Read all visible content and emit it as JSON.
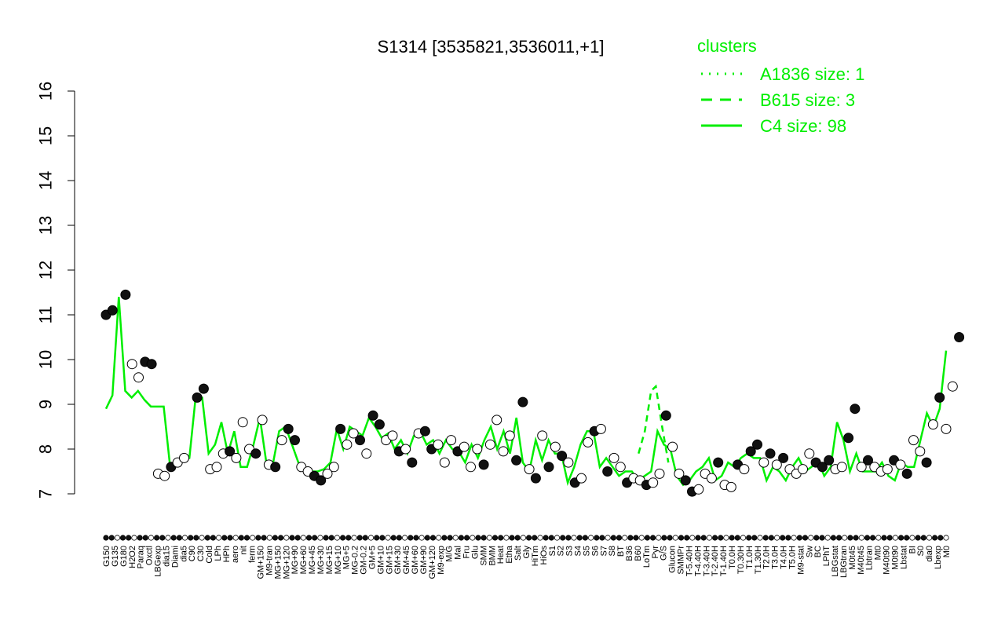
{
  "chart_data": {
    "type": "line",
    "title": "S1314 [3535821,3536011,+1]",
    "xlabel": "",
    "ylabel": "",
    "ylim": [
      7,
      16
    ],
    "y_ticks": [
      7,
      8,
      9,
      10,
      11,
      12,
      13,
      14,
      15,
      16
    ],
    "x_tick_labels": [
      "G150",
      "G135",
      "G180",
      "H2O2",
      "Paraq",
      "Oxctl",
      "LBGexp",
      "dia15",
      "Diami",
      "dia5",
      "C90",
      "C30",
      "Cold",
      "LPh",
      "HPh",
      "aero",
      "nit",
      "ferm",
      "GM+150",
      "M9-tran",
      "MG+150",
      "MG+120",
      "MG+90",
      "MG+60",
      "MG+45",
      "MG+30",
      "MG+15",
      "MG+10",
      "MG+5",
      "MG-0.2",
      "GM-0.2",
      "GM+5",
      "GM+10",
      "GM+15",
      "GM+30",
      "GM+45",
      "GM+60",
      "GM+90",
      "GM+120",
      "M9-exp",
      "M/G",
      "Mal",
      "Fru",
      "Glu",
      "SMM",
      "BMM",
      "Heat",
      "Etha",
      "Salt",
      "Gly",
      "HiTm",
      "HiOs",
      "S1",
      "S2",
      "S3",
      "S4",
      "S5",
      "S6",
      "S7",
      "S8",
      "BT",
      "B36",
      "B60",
      "LoTm",
      "Pyr",
      "G/S",
      "Glucon",
      "SMMPr",
      "T-5.40H",
      "T-4.40H",
      "T-3.40H",
      "T-2.40H",
      "T-1.40H",
      "T0.0H",
      "T0.30H",
      "T1.0H",
      "T1.30H",
      "T2.0H",
      "T3.0H",
      "T4.0H",
      "T5.0H",
      "M9-stat",
      "Sw",
      "BC",
      "LPhT",
      "LBGstat",
      "LBGtran",
      "M0t45",
      "M40t45",
      "Lbtran",
      "Mt0",
      "M40t90",
      "M0t90",
      "Lbstat",
      "BI",
      "S0",
      "dia0",
      "Lbexp",
      "M0"
    ],
    "clusters": [
      {
        "name": "A1836 size: 1",
        "style": "dotted"
      },
      {
        "name": "B615 size: 3",
        "style": "dashed"
      },
      {
        "name": "C4 size: 98",
        "style": "solid"
      }
    ],
    "legend_title": "clusters",
    "legend_position": "top-right",
    "colors": {
      "series": "#00ee00",
      "point_fill_dark": "#111111",
      "point_fill_light": "#ffffff",
      "text": "#000000"
    },
    "points": [
      {
        "x": 1,
        "y": 11.0,
        "f": 1
      },
      {
        "x": 2,
        "y": 11.1,
        "f": 1
      },
      {
        "x": 4,
        "y": 11.45,
        "f": 1
      },
      {
        "x": 5,
        "y": 9.9,
        "f": 0
      },
      {
        "x": 6,
        "y": 9.6,
        "f": 0
      },
      {
        "x": 7,
        "y": 9.95,
        "f": 1
      },
      {
        "x": 8,
        "y": 9.9,
        "f": 1
      },
      {
        "x": 9,
        "y": 7.45,
        "f": 0
      },
      {
        "x": 10,
        "y": 7.4,
        "f": 0
      },
      {
        "x": 11,
        "y": 7.6,
        "f": 1
      },
      {
        "x": 12,
        "y": 7.7,
        "f": 0
      },
      {
        "x": 13,
        "y": 7.8,
        "f": 0
      },
      {
        "x": 15,
        "y": 9.15,
        "f": 1
      },
      {
        "x": 16,
        "y": 9.35,
        "f": 1
      },
      {
        "x": 17,
        "y": 7.55,
        "f": 0
      },
      {
        "x": 18,
        "y": 7.6,
        "f": 0
      },
      {
        "x": 19,
        "y": 7.9,
        "f": 0
      },
      {
        "x": 20,
        "y": 7.95,
        "f": 1
      },
      {
        "x": 21,
        "y": 7.8,
        "f": 0
      },
      {
        "x": 22,
        "y": 8.6,
        "f": 0
      },
      {
        "x": 23,
        "y": 8.0,
        "f": 0
      },
      {
        "x": 24,
        "y": 7.9,
        "f": 1
      },
      {
        "x": 25,
        "y": 8.65,
        "f": 0
      },
      {
        "x": 26,
        "y": 7.65,
        "f": 0
      },
      {
        "x": 27,
        "y": 7.6,
        "f": 1
      },
      {
        "x": 28,
        "y": 8.2,
        "f": 0
      },
      {
        "x": 29,
        "y": 8.45,
        "f": 1
      },
      {
        "x": 30,
        "y": 8.2,
        "f": 1
      },
      {
        "x": 31,
        "y": 7.6,
        "f": 0
      },
      {
        "x": 32,
        "y": 7.5,
        "f": 0
      },
      {
        "x": 33,
        "y": 7.4,
        "f": 1
      },
      {
        "x": 34,
        "y": 7.3,
        "f": 1
      },
      {
        "x": 35,
        "y": 7.45,
        "f": 0
      },
      {
        "x": 36,
        "y": 7.6,
        "f": 0
      },
      {
        "x": 37,
        "y": 8.45,
        "f": 1
      },
      {
        "x": 38,
        "y": 8.1,
        "f": 0
      },
      {
        "x": 39,
        "y": 8.35,
        "f": 0
      },
      {
        "x": 40,
        "y": 8.2,
        "f": 1
      },
      {
        "x": 41,
        "y": 7.9,
        "f": 0
      },
      {
        "x": 42,
        "y": 8.75,
        "f": 1
      },
      {
        "x": 43,
        "y": 8.55,
        "f": 1
      },
      {
        "x": 44,
        "y": 8.2,
        "f": 0
      },
      {
        "x": 45,
        "y": 8.3,
        "f": 0
      },
      {
        "x": 46,
        "y": 7.95,
        "f": 1
      },
      {
        "x": 47,
        "y": 8.0,
        "f": 0
      },
      {
        "x": 48,
        "y": 7.7,
        "f": 1
      },
      {
        "x": 49,
        "y": 8.35,
        "f": 0
      },
      {
        "x": 50,
        "y": 8.4,
        "f": 1
      },
      {
        "x": 51,
        "y": 8.0,
        "f": 1
      },
      {
        "x": 52,
        "y": 8.1,
        "f": 0
      },
      {
        "x": 53,
        "y": 7.7,
        "f": 0
      },
      {
        "x": 54,
        "y": 8.2,
        "f": 0
      },
      {
        "x": 55,
        "y": 7.95,
        "f": 1
      },
      {
        "x": 56,
        "y": 8.05,
        "f": 0
      },
      {
        "x": 57,
        "y": 7.6,
        "f": 0
      },
      {
        "x": 58,
        "y": 8.0,
        "f": 0
      },
      {
        "x": 59,
        "y": 7.65,
        "f": 1
      },
      {
        "x": 60,
        "y": 8.1,
        "f": 0
      },
      {
        "x": 61,
        "y": 8.65,
        "f": 0
      },
      {
        "x": 62,
        "y": 7.95,
        "f": 0
      },
      {
        "x": 63,
        "y": 8.3,
        "f": 0
      },
      {
        "x": 64,
        "y": 7.75,
        "f": 1
      },
      {
        "x": 65,
        "y": 9.05,
        "f": 1
      },
      {
        "x": 66,
        "y": 7.55,
        "f": 0
      },
      {
        "x": 67,
        "y": 7.35,
        "f": 1
      },
      {
        "x": 68,
        "y": 8.3,
        "f": 0
      },
      {
        "x": 69,
        "y": 7.6,
        "f": 1
      },
      {
        "x": 70,
        "y": 8.05,
        "f": 0
      },
      {
        "x": 71,
        "y": 7.85,
        "f": 1
      },
      {
        "x": 72,
        "y": 7.7,
        "f": 0
      },
      {
        "x": 73,
        "y": 7.25,
        "f": 1
      },
      {
        "x": 74,
        "y": 7.35,
        "f": 0
      },
      {
        "x": 75,
        "y": 8.15,
        "f": 0
      },
      {
        "x": 76,
        "y": 8.4,
        "f": 1
      },
      {
        "x": 77,
        "y": 8.45,
        "f": 0
      },
      {
        "x": 78,
        "y": 7.5,
        "f": 1
      },
      {
        "x": 79,
        "y": 7.8,
        "f": 0
      },
      {
        "x": 80,
        "y": 7.6,
        "f": 0
      },
      {
        "x": 81,
        "y": 7.25,
        "f": 1
      },
      {
        "x": 82,
        "y": 7.35,
        "f": 0
      },
      {
        "x": 83,
        "y": 7.3,
        "f": 0
      },
      {
        "x": 84,
        "y": 7.2,
        "f": 1
      },
      {
        "x": 85,
        "y": 7.25,
        "f": 0
      },
      {
        "x": 86,
        "y": 7.45,
        "f": 0
      },
      {
        "x": 87,
        "y": 8.75,
        "f": 1
      },
      {
        "x": 88,
        "y": 8.05,
        "f": 0
      },
      {
        "x": 89,
        "y": 7.45,
        "f": 0
      },
      {
        "x": 90,
        "y": 7.3,
        "f": 1
      },
      {
        "x": 91,
        "y": 7.05,
        "f": 1
      },
      {
        "x": 92,
        "y": 7.1,
        "f": 0
      },
      {
        "x": 93,
        "y": 7.45,
        "f": 0
      },
      {
        "x": 94,
        "y": 7.35,
        "f": 0
      },
      {
        "x": 95,
        "y": 7.7,
        "f": 1
      },
      {
        "x": 96,
        "y": 7.2,
        "f": 0
      },
      {
        "x": 97,
        "y": 7.15,
        "f": 0
      },
      {
        "x": 98,
        "y": 7.65,
        "f": 1
      },
      {
        "x": 99,
        "y": 7.55,
        "f": 0
      },
      {
        "x": 100,
        "y": 7.95,
        "f": 1
      },
      {
        "x": 101,
        "y": 8.1,
        "f": 1
      },
      {
        "x": 102,
        "y": 7.7,
        "f": 0
      },
      {
        "x": 103,
        "y": 7.9,
        "f": 1
      },
      {
        "x": 104,
        "y": 7.65,
        "f": 0
      },
      {
        "x": 105,
        "y": 7.8,
        "f": 1
      },
      {
        "x": 106,
        "y": 7.55,
        "f": 0
      },
      {
        "x": 107,
        "y": 7.45,
        "f": 0
      },
      {
        "x": 108,
        "y": 7.55,
        "f": 0
      },
      {
        "x": 109,
        "y": 7.9,
        "f": 0
      },
      {
        "x": 110,
        "y": 7.7,
        "f": 1
      },
      {
        "x": 111,
        "y": 7.6,
        "f": 1
      },
      {
        "x": 112,
        "y": 7.75,
        "f": 1
      },
      {
        "x": 113,
        "y": 7.55,
        "f": 0
      },
      {
        "x": 114,
        "y": 7.6,
        "f": 0
      },
      {
        "x": 115,
        "y": 8.25,
        "f": 1
      },
      {
        "x": 116,
        "y": 8.9,
        "f": 1
      },
      {
        "x": 117,
        "y": 7.6,
        "f": 0
      },
      {
        "x": 118,
        "y": 7.75,
        "f": 1
      },
      {
        "x": 119,
        "y": 7.6,
        "f": 0
      },
      {
        "x": 120,
        "y": 7.5,
        "f": 0
      },
      {
        "x": 121,
        "y": 7.55,
        "f": 0
      },
      {
        "x": 122,
        "y": 7.75,
        "f": 1
      },
      {
        "x": 123,
        "y": 7.65,
        "f": 0
      },
      {
        "x": 124,
        "y": 7.45,
        "f": 1
      },
      {
        "x": 125,
        "y": 8.2,
        "f": 0
      },
      {
        "x": 126,
        "y": 7.95,
        "f": 0
      },
      {
        "x": 127,
        "y": 7.7,
        "f": 1
      },
      {
        "x": 128,
        "y": 8.55,
        "f": 0
      },
      {
        "x": 129,
        "y": 9.15,
        "f": 1
      },
      {
        "x": 130,
        "y": 8.45,
        "f": 0
      },
      {
        "x": 131,
        "y": 9.4,
        "f": 0
      },
      {
        "x": 132,
        "y": 10.5,
        "f": 1
      }
    ],
    "line_c4": [
      8.9,
      9.2,
      11.4,
      9.3,
      9.15,
      9.3,
      9.1,
      8.95,
      8.95,
      8.95,
      7.6,
      7.7,
      7.75,
      7.8,
      9.2,
      9.15,
      7.9,
      8.1,
      8.6,
      7.9,
      8.4,
      7.6,
      7.6,
      8.1,
      8.7,
      7.7,
      7.65,
      8.4,
      8.5,
      8.1,
      7.7,
      7.6,
      7.5,
      7.5,
      7.55,
      7.7,
      8.45,
      8.0,
      8.5,
      8.4,
      8.3,
      8.7,
      8.5,
      8.25,
      8.35,
      8.0,
      8.2,
      7.9,
      8.3,
      8.4,
      8.1,
      8.2,
      7.9,
      8.2,
      8.0,
      7.95,
      7.7,
      8.1,
      7.8,
      8.2,
      8.5,
      8.0,
      8.4,
      7.9,
      8.7,
      7.7,
      7.5,
      8.2,
      7.75,
      8.2,
      7.9,
      7.9,
      7.25,
      7.6,
      8.1,
      8.4,
      8.4,
      7.6,
      7.8,
      7.6,
      7.4,
      7.5,
      7.5,
      7.3,
      7.4,
      7.5,
      8.4,
      8.1,
      8.0,
      7.4,
      7.2,
      7.3,
      7.5,
      7.6,
      7.8,
      7.3,
      7.4,
      7.7,
      7.6,
      7.8,
      7.9,
      7.8,
      7.8,
      7.3,
      7.6,
      7.5,
      7.3,
      7.6,
      7.8,
      7.5,
      7.6,
      7.75,
      7.4,
      7.6,
      8.6,
      8.2,
      7.5,
      7.9,
      7.5,
      7.5,
      7.5,
      7.7,
      7.4,
      7.3,
      7.7,
      7.6,
      7.6,
      8.2,
      8.8,
      8.5,
      8.9,
      10.2
    ]
  }
}
